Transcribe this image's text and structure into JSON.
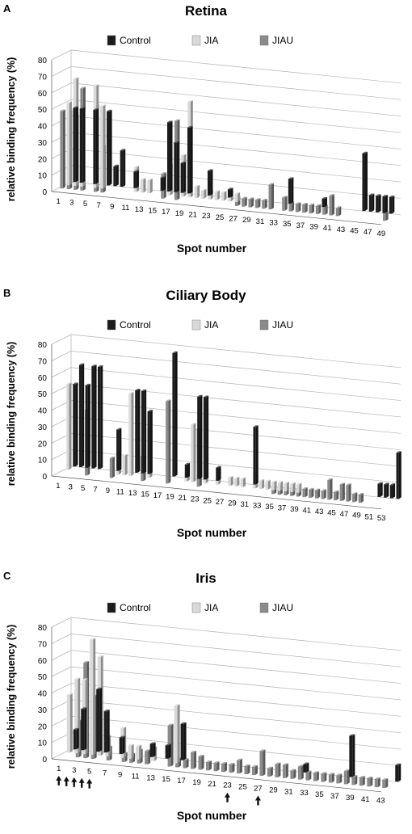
{
  "figure": {
    "colors": {
      "Control": "#1c1c1c",
      "JIA": "#d9d9d9",
      "JIAU": "#8a8a8a",
      "grid": "#b4b4b4",
      "axis": "#555555"
    }
  },
  "chart_data": [
    {
      "panel": "A",
      "type": "bar",
      "style": "3d-clustered-column",
      "title": "Retina",
      "xlabel": "Spot number",
      "ylabel": "relative binding frequency (%)",
      "ylim": [
        0,
        80
      ],
      "yticks": [
        0,
        10,
        20,
        30,
        40,
        50,
        60,
        70,
        80
      ],
      "grid": true,
      "legend_position": "top-center",
      "categories": [
        1,
        2,
        3,
        4,
        5,
        6,
        7,
        8,
        9,
        10,
        11,
        12,
        13,
        14,
        15,
        16,
        17,
        18,
        19,
        20,
        21,
        22,
        23,
        24,
        25,
        26,
        27,
        28,
        29,
        30,
        31,
        32,
        33,
        34,
        35,
        36,
        37,
        38,
        39,
        40,
        41,
        42,
        43,
        44,
        45,
        46,
        47,
        48,
        49
      ],
      "category_tick_labels": [
        "1",
        "3",
        "5",
        "7",
        "9",
        "11",
        "13",
        "15",
        "17",
        "19",
        "21",
        "23",
        "25",
        "27",
        "29",
        "31",
        "33",
        "35",
        "37",
        "39",
        "41",
        "43",
        "45",
        "47",
        "49"
      ],
      "series": [
        {
          "name": "Control",
          "values": [
            45,
            45,
            0,
            45,
            0,
            45,
            12,
            22,
            0,
            10,
            0,
            0,
            0,
            8,
            42,
            30,
            18,
            40,
            0,
            0,
            15,
            0,
            0,
            5,
            0,
            0,
            0,
            0,
            0,
            0,
            0,
            0,
            15,
            0,
            0,
            0,
            0,
            5,
            0,
            0,
            0,
            0,
            0,
            35,
            10,
            10,
            10,
            10,
            0
          ]
        },
        {
          "name": "JIA",
          "values": [
            50,
            65,
            45,
            0,
            62,
            50,
            0,
            0,
            0,
            0,
            15,
            8,
            8,
            0,
            0,
            18,
            0,
            25,
            58,
            7,
            5,
            5,
            5,
            5,
            6,
            5,
            0,
            0,
            0,
            0,
            0,
            0,
            0,
            0,
            0,
            0,
            0,
            0,
            0,
            0,
            0,
            0,
            0,
            0,
            0,
            0,
            0,
            0,
            0
          ]
        },
        {
          "name": "JIAU",
          "values": [
            47,
            47,
            45,
            62,
            0,
            52,
            28,
            0,
            0,
            0,
            0,
            0,
            0,
            0,
            0,
            15,
            0,
            48,
            0,
            0,
            0,
            0,
            0,
            0,
            0,
            0,
            5,
            5,
            5,
            5,
            5,
            15,
            0,
            8,
            5,
            5,
            5,
            5,
            5,
            5,
            12,
            5,
            0,
            0,
            0,
            0,
            0,
            0,
            5
          ]
        }
      ]
    },
    {
      "panel": "B",
      "type": "bar",
      "style": "3d-clustered-column",
      "title": "Ciliary Body",
      "xlabel": "Spot  number",
      "ylabel": "relative binding frequency (%)",
      "ylim": [
        0,
        80
      ],
      "yticks": [
        0,
        10,
        20,
        30,
        40,
        50,
        60,
        70,
        80
      ],
      "grid": true,
      "legend_position": "top-center",
      "categories": [
        1,
        2,
        3,
        4,
        5,
        6,
        7,
        8,
        9,
        10,
        11,
        12,
        13,
        14,
        15,
        16,
        17,
        18,
        19,
        20,
        21,
        22,
        23,
        24,
        25,
        26,
        27,
        28,
        29,
        30,
        31,
        32,
        33,
        34,
        35,
        36,
        37,
        38,
        39,
        40,
        41,
        42,
        43,
        44,
        45,
        46,
        47,
        48,
        49,
        50,
        51,
        52,
        53
      ],
      "category_tick_labels": [
        "1",
        "3",
        "5",
        "7",
        "9",
        "11",
        "13",
        "15",
        "17",
        "19",
        "21",
        "23",
        "25",
        "27",
        "29",
        "31",
        "33",
        "35",
        "37",
        "39",
        "41",
        "43",
        "45",
        "47",
        "49",
        "51",
        "53"
      ],
      "series": [
        {
          "name": "Control",
          "values": [
            50,
            62,
            50,
            62,
            62,
            0,
            0,
            25,
            0,
            0,
            50,
            50,
            38,
            0,
            0,
            0,
            75,
            0,
            8,
            0,
            50,
            50,
            0,
            8,
            0,
            0,
            0,
            0,
            0,
            35,
            0,
            0,
            0,
            0,
            0,
            0,
            0,
            0,
            0,
            0,
            0,
            0,
            0,
            0,
            0,
            0,
            0,
            0,
            0,
            8,
            8,
            8,
            28
          ]
        },
        {
          "name": "JIA",
          "values": [
            52,
            0,
            0,
            0,
            0,
            0,
            0,
            0,
            15,
            12,
            50,
            0,
            0,
            30,
            0,
            0,
            0,
            0,
            0,
            5,
            35,
            0,
            50,
            0,
            10,
            0,
            5,
            5,
            5,
            0,
            10,
            5,
            5,
            5,
            5,
            5,
            5,
            5,
            0,
            0,
            0,
            0,
            0,
            0,
            0,
            0,
            0,
            0,
            0,
            0,
            0,
            0,
            0
          ]
        },
        {
          "name": "JIAU",
          "values": [
            0,
            0,
            0,
            0,
            40,
            0,
            0,
            0,
            12,
            0,
            0,
            0,
            0,
            15,
            0,
            0,
            0,
            50,
            0,
            0,
            0,
            0,
            35,
            0,
            0,
            0,
            0,
            0,
            0,
            0,
            0,
            0,
            0,
            0,
            5,
            5,
            5,
            5,
            5,
            5,
            5,
            5,
            5,
            12,
            5,
            10,
            10,
            5,
            5,
            0,
            0,
            0,
            0
          ]
        }
      ]
    },
    {
      "panel": "C",
      "type": "bar",
      "style": "3d-clustered-column",
      "title": "Iris",
      "xlabel": "Spot number",
      "ylabel": "relative binding frequency (%)",
      "ylim": [
        0,
        80
      ],
      "yticks": [
        0,
        10,
        20,
        30,
        40,
        50,
        60,
        70,
        80
      ],
      "grid": true,
      "legend_position": "top-center",
      "categories": [
        1,
        2,
        3,
        4,
        5,
        6,
        7,
        8,
        9,
        10,
        11,
        12,
        13,
        14,
        15,
        16,
        17,
        18,
        19,
        20,
        21,
        22,
        23,
        24,
        25,
        26,
        27,
        28,
        29,
        30,
        31,
        32,
        33,
        34,
        35,
        36,
        37,
        38,
        39,
        40,
        41,
        42,
        43
      ],
      "category_tick_labels": [
        "1",
        "3",
        "5",
        "7",
        "9",
        "11",
        "13",
        "15",
        "17",
        "19",
        "21",
        "23",
        "25",
        "27",
        "29",
        "31",
        "33",
        "35",
        "37",
        "39",
        "41",
        "43"
      ],
      "arrow_spots": [
        1,
        2,
        3,
        4,
        5,
        23,
        27
      ],
      "series": [
        {
          "name": "Control",
          "values": [
            12,
            25,
            0,
            38,
            25,
            0,
            10,
            0,
            0,
            0,
            8,
            0,
            8,
            0,
            22,
            0,
            0,
            0,
            0,
            0,
            0,
            0,
            0,
            0,
            0,
            0,
            0,
            0,
            0,
            0,
            5,
            0,
            0,
            0,
            0,
            0,
            25,
            0,
            0,
            0,
            0,
            0,
            10
          ]
        },
        {
          "name": "JIA",
          "values": [
            35,
            45,
            45,
            70,
            60,
            12,
            0,
            18,
            8,
            8,
            0,
            8,
            0,
            0,
            35,
            0,
            0,
            0,
            0,
            0,
            0,
            0,
            0,
            0,
            0,
            0,
            0,
            0,
            0,
            0,
            0,
            0,
            0,
            0,
            0,
            0,
            0,
            0,
            0,
            0,
            0,
            0,
            0
          ]
        },
        {
          "name": "JIAU",
          "values": [
            0,
            0,
            22,
            58,
            38,
            0,
            8,
            0,
            5,
            5,
            8,
            8,
            0,
            0,
            25,
            5,
            5,
            10,
            8,
            5,
            5,
            5,
            5,
            8,
            5,
            5,
            15,
            5,
            8,
            8,
            5,
            8,
            5,
            5,
            5,
            5,
            5,
            8,
            5,
            5,
            5,
            5,
            5
          ]
        }
      ]
    }
  ]
}
